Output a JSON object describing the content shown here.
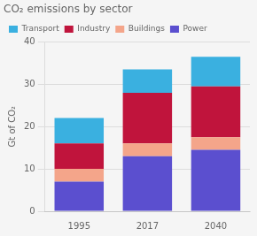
{
  "chart_data": {
    "type": "bar",
    "title": "CO₂ emissions by sector",
    "ylabel": "Gt of CO₂",
    "categories": [
      "1995",
      "2017",
      "2040"
    ],
    "series": [
      {
        "name": "Power",
        "color": "#5b4fcf",
        "values": [
          7.0,
          13.0,
          14.5
        ]
      },
      {
        "name": "Buildings",
        "color": "#f4a58a",
        "values": [
          3.0,
          3.0,
          3.0
        ]
      },
      {
        "name": "Industry",
        "color": "#c0143c",
        "values": [
          6.0,
          12.0,
          12.0
        ]
      },
      {
        "name": "Transport",
        "color": "#3ab0e0",
        "values": [
          6.0,
          5.5,
          7.0
        ]
      }
    ],
    "stacked": true,
    "ylim": [
      0,
      40
    ],
    "yticks": [
      0,
      10,
      20,
      30,
      40
    ],
    "grid": true,
    "legend": "upper left"
  }
}
